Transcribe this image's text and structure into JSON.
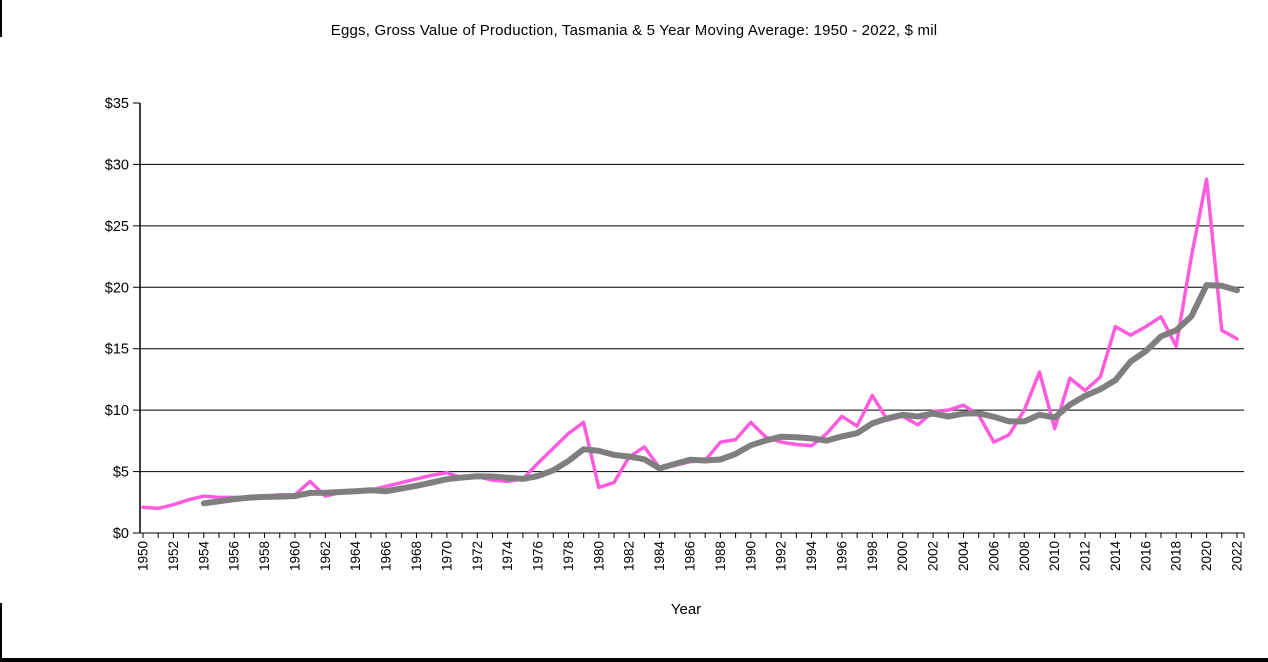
{
  "page": {
    "title": "Eggs, Gross Value of Production, Tasmania & 5 Year Moving Average: 1950 - 2022, $ mil"
  },
  "chart_data": {
    "type": "line",
    "title": "Eggs, Gross Value of Production, Tasmania & 5 Year Moving Average: 1950 - 2022, $ mil",
    "xlabel": "Year",
    "ylabel": "",
    "ylim": [
      0,
      35
    ],
    "y_tick_labels": [
      "$0",
      "$5",
      "$10",
      "$15",
      "$20",
      "$25",
      "$30",
      "$35"
    ],
    "y_tick_values": [
      0,
      5,
      10,
      15,
      20,
      25,
      30,
      35
    ],
    "x_range": [
      1950,
      2022
    ],
    "x_tick_labels": [
      "1950",
      "1952",
      "1954",
      "1956",
      "1958",
      "1960",
      "1962",
      "1964",
      "1966",
      "1968",
      "1970",
      "1972",
      "1974",
      "1976",
      "1978",
      "1980",
      "1982",
      "1984",
      "1986",
      "1988",
      "1990",
      "1992",
      "1994",
      "1996",
      "1998",
      "2000",
      "2002",
      "2004",
      "2006",
      "2008",
      "2010",
      "2012",
      "2014",
      "2016",
      "2018",
      "2020",
      "2022"
    ],
    "grid": "horizontal",
    "legend": "none",
    "series": [
      {
        "name": "Eggs, Gross Value of Production ($ mil)",
        "color": "#ff5bde",
        "stroke_width": 3.5,
        "values": [
          2.1,
          2.0,
          2.3,
          2.7,
          3.0,
          2.9,
          2.9,
          2.9,
          3.0,
          3.1,
          3.1,
          4.2,
          3.0,
          3.3,
          3.4,
          3.5,
          3.8,
          4.1,
          4.4,
          4.7,
          4.9,
          4.5,
          4.6,
          4.3,
          4.2,
          4.4,
          5.7,
          6.9,
          8.1,
          9.0,
          3.7,
          4.1,
          6.2,
          7.0,
          5.3,
          5.5,
          5.8,
          5.9,
          7.4,
          7.6,
          9.0,
          7.8,
          7.4,
          7.2,
          7.1,
          8.1,
          9.5,
          8.7,
          11.2,
          9.2,
          9.5,
          8.8,
          9.9,
          10.0,
          10.4,
          9.6,
          7.4,
          8.0,
          10.0,
          13.1,
          8.5,
          12.6,
          11.6,
          12.7,
          16.8,
          16.1,
          16.8,
          17.6,
          15.2,
          22.5,
          28.8,
          16.5,
          15.8
        ]
      },
      {
        "name": "5 Year Moving Average",
        "color": "#7f7f7f",
        "stroke_width": 6,
        "values": [
          null,
          null,
          null,
          null,
          2.42,
          2.58,
          2.76,
          2.88,
          2.94,
          2.96,
          3.0,
          3.26,
          3.28,
          3.34,
          3.4,
          3.48,
          3.4,
          3.62,
          3.84,
          4.1,
          4.38,
          4.52,
          4.62,
          4.6,
          4.5,
          4.4,
          4.64,
          5.1,
          5.86,
          6.82,
          6.68,
          6.36,
          6.22,
          6.0,
          5.26,
          5.62,
          5.96,
          5.9,
          5.98,
          6.44,
          7.14,
          7.54,
          7.84,
          7.8,
          7.7,
          7.52,
          7.86,
          8.12,
          8.92,
          9.34,
          9.62,
          9.48,
          9.72,
          9.48,
          9.72,
          9.74,
          9.46,
          9.08,
          9.08,
          9.62,
          9.4,
          10.44,
          11.16,
          11.7,
          12.44,
          13.96,
          14.8,
          16.0,
          16.5,
          17.64,
          20.18,
          20.12,
          19.76
        ]
      }
    ]
  }
}
